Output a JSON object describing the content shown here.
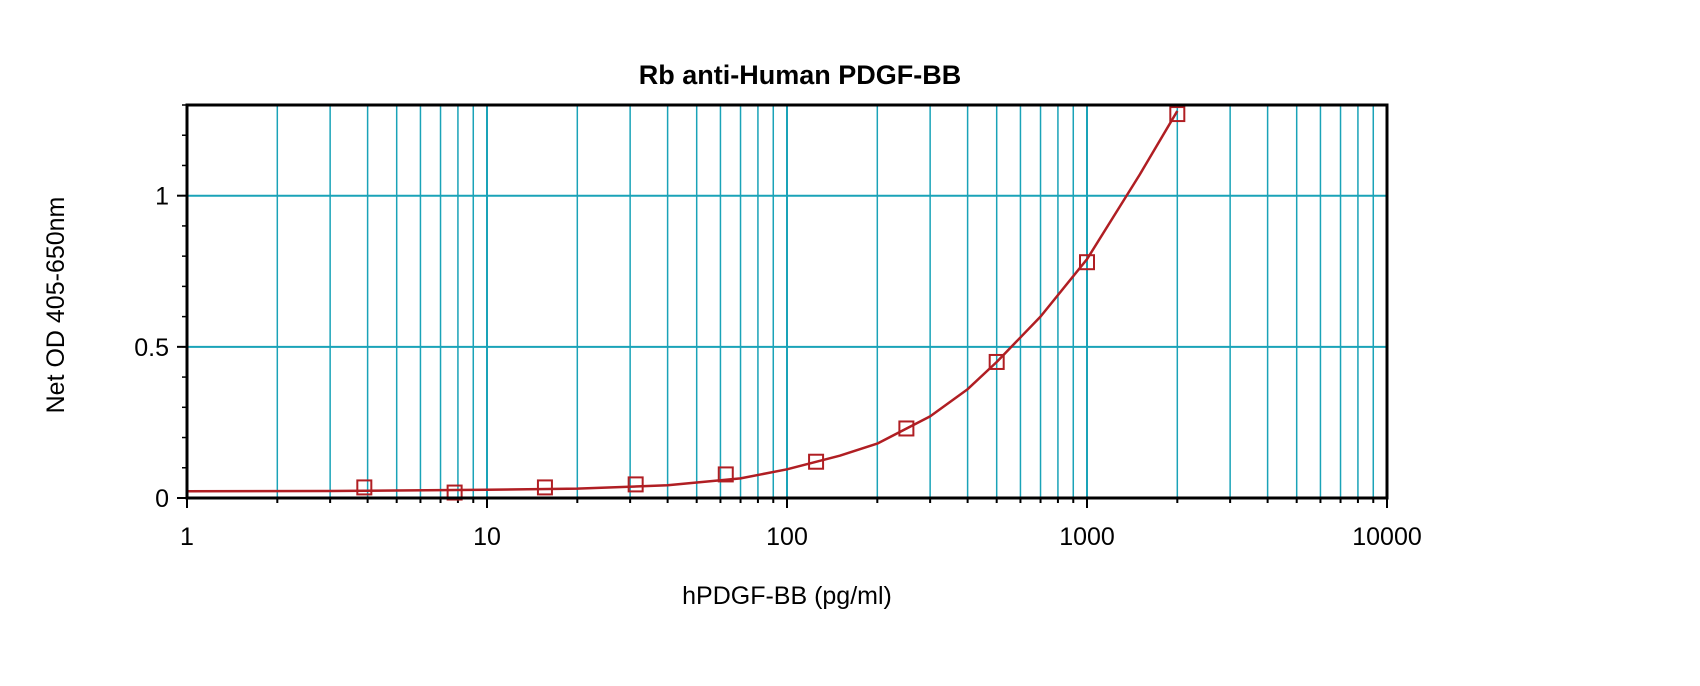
{
  "chart_data": {
    "type": "scatter",
    "title": "Rb anti-Human PDGF-BB",
    "xlabel": "hPDGF-BB (pg/ml)",
    "ylabel": "Net OD 405-650nm",
    "xscale": "log",
    "xlim": [
      1,
      10000
    ],
    "ylim": [
      0,
      1.3
    ],
    "grid": true,
    "x_tick_labels": [
      "1",
      "10",
      "100",
      "1000",
      "10000"
    ],
    "x_tick_values": [
      1,
      10,
      100,
      1000,
      10000
    ],
    "y_tick_labels": [
      "0",
      "0.5",
      "1"
    ],
    "y_tick_values": [
      0,
      0.5,
      1
    ],
    "colors": {
      "grid": "#1aa3b8",
      "series": "#b01e23",
      "frame": "#000000"
    },
    "series": [
      {
        "marker": "square-open",
        "x": [
          3.9,
          7.8,
          15.6,
          31.3,
          62.5,
          125,
          250,
          500,
          1000,
          2000
        ],
        "y": [
          0.035,
          0.018,
          0.035,
          0.045,
          0.078,
          0.12,
          0.23,
          0.45,
          0.78,
          1.27
        ]
      }
    ],
    "fit_curve": {
      "x": [
        1,
        3,
        10,
        20,
        40,
        70,
        100,
        150,
        200,
        300,
        400,
        500,
        700,
        1000,
        1500,
        2000
      ],
      "y": [
        0.022,
        0.023,
        0.027,
        0.031,
        0.042,
        0.065,
        0.095,
        0.14,
        0.18,
        0.27,
        0.36,
        0.45,
        0.6,
        0.79,
        1.07,
        1.28
      ]
    }
  }
}
